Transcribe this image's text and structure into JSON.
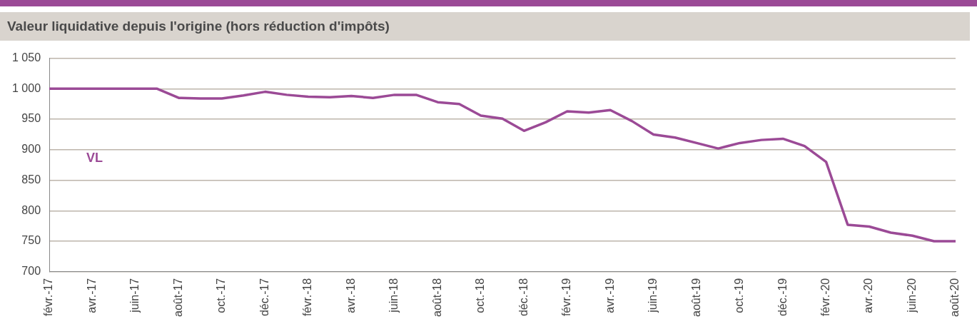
{
  "chart_data": {
    "type": "line",
    "title": "Valeur liquidative depuis l'origine (hors réduction d'impôts)",
    "categories": [
      "févr.-17",
      null,
      "avr.-17",
      null,
      "juin-17",
      null,
      "août-17",
      null,
      "oct.-17",
      null,
      "déc.-17",
      null,
      "févr.-18",
      null,
      "avr.-18",
      null,
      "juin-18",
      null,
      "août-18",
      null,
      "oct.-18",
      null,
      "déc.-18",
      null,
      "févr.-19",
      null,
      "avr.-19",
      null,
      "juin-19",
      null,
      "août-19",
      null,
      "oct.-19",
      null,
      "déc.-19",
      null,
      "févr.-20",
      null,
      "avr.-20",
      null,
      "juin-20",
      null,
      "août-20"
    ],
    "series": [
      {
        "name": "VL",
        "color": "#9b4a96",
        "values": [
          1000,
          1000,
          1000,
          1000,
          1000,
          1000,
          985,
          984,
          984,
          989,
          995,
          990,
          987,
          986,
          988,
          985,
          990,
          990,
          978,
          975,
          956,
          951,
          931,
          945,
          963,
          961,
          965,
          947,
          925,
          920,
          911,
          902,
          911,
          916,
          918,
          906,
          880,
          777,
          774,
          764,
          759,
          750,
          750
        ]
      }
    ],
    "ylim": [
      700,
      1050
    ],
    "yticks": [
      700,
      750,
      800,
      850,
      900,
      950,
      {
        "value": 1000,
        "label": "1 000"
      },
      {
        "value": 1050,
        "label": "1 050"
      }
    ],
    "grid": "y",
    "legend": false,
    "marker": "none",
    "line_style": "solid"
  }
}
